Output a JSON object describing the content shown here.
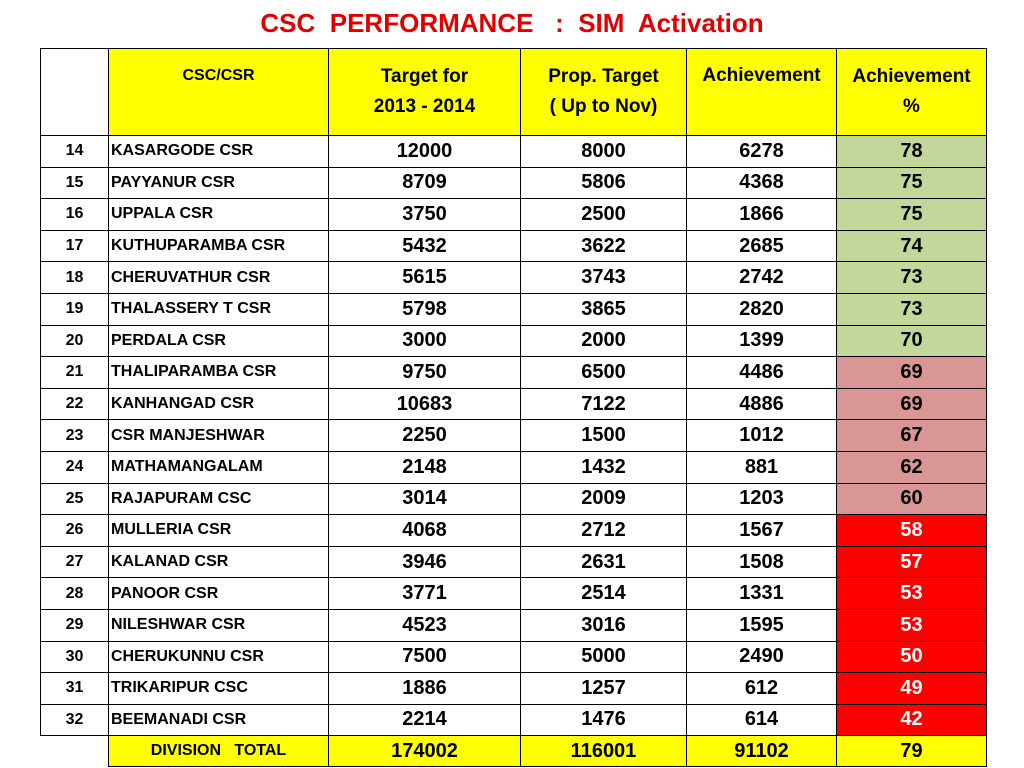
{
  "title": "CSC  PERFORMANCE   :  SIM  Activation",
  "colors": {
    "title": "#e00000",
    "header_bg": "#ffff00",
    "green": "#c4d79b",
    "pink": "#da9694",
    "red": "#ff0000"
  },
  "headers": {
    "csc": "CSC/CSR",
    "target_line1": "Target  for",
    "target_line2": "2013 - 2014",
    "prop_line1": "Prop. Target",
    "prop_line2": "( Up  to  Nov)",
    "achievement": "Achievement",
    "achievement_pct_line1": "Achievement",
    "achievement_pct_line2": "%"
  },
  "rows": [
    {
      "num": "14",
      "name": "KASARGODE  CSR",
      "target": "12000",
      "prop": "8000",
      "achievement": "6278",
      "pct": "78",
      "band": "green"
    },
    {
      "num": "15",
      "name": "PAYYANUR    CSR",
      "target": "8709",
      "prop": "5806",
      "achievement": "4368",
      "pct": "75",
      "band": "green"
    },
    {
      "num": "16",
      "name": "UPPALA        CSR",
      "target": "3750",
      "prop": "2500",
      "achievement": "1866",
      "pct": "75",
      "band": "green"
    },
    {
      "num": "17",
      "name": "KUTHUPARAMBA CSR",
      "target": "5432",
      "prop": "3622",
      "achievement": "2685",
      "pct": "74",
      "band": "green"
    },
    {
      "num": "18",
      "name": "CHERUVATHUR  CSR",
      "target": "5615",
      "prop": "3743",
      "achievement": "2742",
      "pct": "73",
      "band": "green"
    },
    {
      "num": "19",
      "name": "THALASSERY  T  CSR",
      "target": "5798",
      "prop": "3865",
      "achievement": "2820",
      "pct": "73",
      "band": "green"
    },
    {
      "num": "20",
      "name": "PERDALA  CSR",
      "target": "3000",
      "prop": "2000",
      "achievement": "1399",
      "pct": "70",
      "band": "green"
    },
    {
      "num": "21",
      "name": "THALIPARAMBA  CSR",
      "target": "9750",
      "prop": "6500",
      "achievement": "4486",
      "pct": "69",
      "band": "pink"
    },
    {
      "num": "22",
      "name": "KANHANGAD  CSR",
      "target": "10683",
      "prop": "7122",
      "achievement": "4886",
      "pct": "69",
      "band": "pink"
    },
    {
      "num": "23",
      "name": "CSR   MANJESHWAR",
      "target": "2250",
      "prop": "1500",
      "achievement": "1012",
      "pct": "67",
      "band": "pink"
    },
    {
      "num": "24",
      "name": "MATHAMANGALAM",
      "target": "2148",
      "prop": "1432",
      "achievement": "881",
      "pct": "62",
      "band": "pink"
    },
    {
      "num": "25",
      "name": "RAJAPURAM  CSC",
      "target": "3014",
      "prop": "2009",
      "achievement": "1203",
      "pct": "60",
      "band": "pink"
    },
    {
      "num": "26",
      "name": "MULLERIA  CSR",
      "target": "4068",
      "prop": "2712",
      "achievement": "1567",
      "pct": "58",
      "band": "red"
    },
    {
      "num": "27",
      "name": "KALANAD  CSR",
      "target": "3946",
      "prop": "2631",
      "achievement": "1508",
      "pct": "57",
      "band": "red"
    },
    {
      "num": "28",
      "name": "PANOOR  CSR",
      "target": "3771",
      "prop": "2514",
      "achievement": "1331",
      "pct": "53",
      "band": "red"
    },
    {
      "num": "29",
      "name": "NILESHWAR  CSR",
      "target": "4523",
      "prop": "3016",
      "achievement": "1595",
      "pct": "53",
      "band": "red"
    },
    {
      "num": "30",
      "name": "CHERUKUNNU  CSR",
      "target": "7500",
      "prop": "5000",
      "achievement": "2490",
      "pct": "50",
      "band": "red"
    },
    {
      "num": "31",
      "name": "TRIKARIPUR  CSC",
      "target": "1886",
      "prop": "1257",
      "achievement": "612",
      "pct": "49",
      "band": "red"
    },
    {
      "num": "32",
      "name": "BEEMANADI  CSR",
      "target": "2214",
      "prop": "1476",
      "achievement": "614",
      "pct": "42",
      "band": "red"
    }
  ],
  "total": {
    "label": "DIVISION   TOTAL",
    "target": "174002",
    "prop": "116001",
    "achievement": "91102",
    "pct": "79"
  }
}
